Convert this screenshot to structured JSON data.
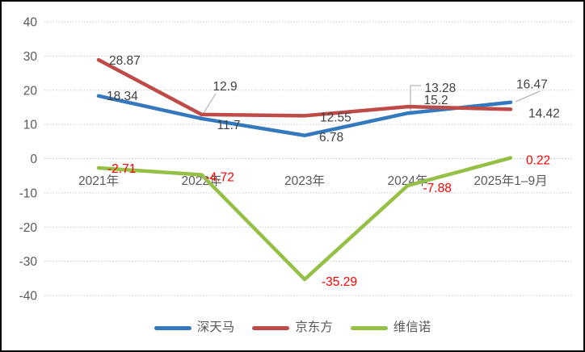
{
  "chart_data": {
    "type": "line",
    "title": "",
    "xlabel": "",
    "ylabel": "",
    "categories": [
      "2021年",
      "2022年",
      "2023年",
      "2024年",
      "2025年1–9月"
    ],
    "y_ticks": [
      "40",
      "30",
      "20",
      "10",
      "0",
      "-10",
      "-20",
      "-30",
      "-40"
    ],
    "ylim": [
      -40,
      40
    ],
    "grid": true,
    "gridline_style": "dotted",
    "legend_position": "bottom",
    "colors": {
      "axis_text": "#595959",
      "data_label_text": "#404040",
      "negative_label_text": "#FF0000",
      "gridline": "#C9C9C9",
      "leader_line": "#A6A6A6"
    },
    "series": [
      {
        "name": "深天马",
        "color": "#3478BD",
        "label_color": "#404040",
        "values": [
          18.34,
          11.7,
          6.78,
          13.28,
          16.47
        ],
        "labels": [
          "18.34",
          "11.7",
          "6.78",
          "13.28",
          "16.47"
        ]
      },
      {
        "name": "京东方",
        "color": "#BE4B48",
        "label_color": "#404040",
        "values": [
          28.87,
          12.9,
          12.55,
          15.2,
          14.42
        ],
        "labels": [
          "28.87",
          "12.9",
          "12.55",
          "15.2",
          "14.42"
        ]
      },
      {
        "name": "维信诺",
        "color": "#94C045",
        "label_color": "#FF0000",
        "values": [
          -2.71,
          -4.72,
          -35.29,
          -7.88,
          0.22
        ],
        "labels": [
          "-2.71",
          "-4.72",
          "-35.29",
          "-7.88",
          "0.22"
        ]
      }
    ]
  }
}
